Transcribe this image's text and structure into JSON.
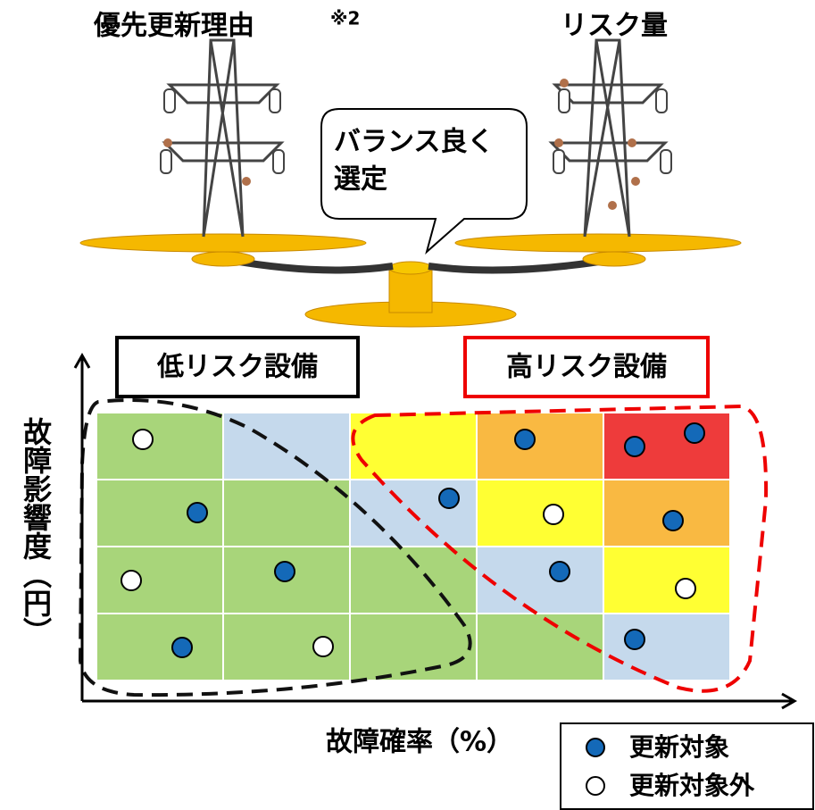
{
  "header": {
    "left_label": "優先更新理由",
    "left_note": "※2",
    "right_label": "リスク量"
  },
  "bubble": {
    "lines": [
      "バランス良く",
      "選定"
    ]
  },
  "groups": {
    "low": "低リスク設備",
    "high": "高リスク設備"
  },
  "axes": {
    "y_label": "故障影響度（円）",
    "x_label": "故障確率（%）"
  },
  "legend": {
    "items": [
      "更新対象",
      "更新対象外"
    ]
  }
}
